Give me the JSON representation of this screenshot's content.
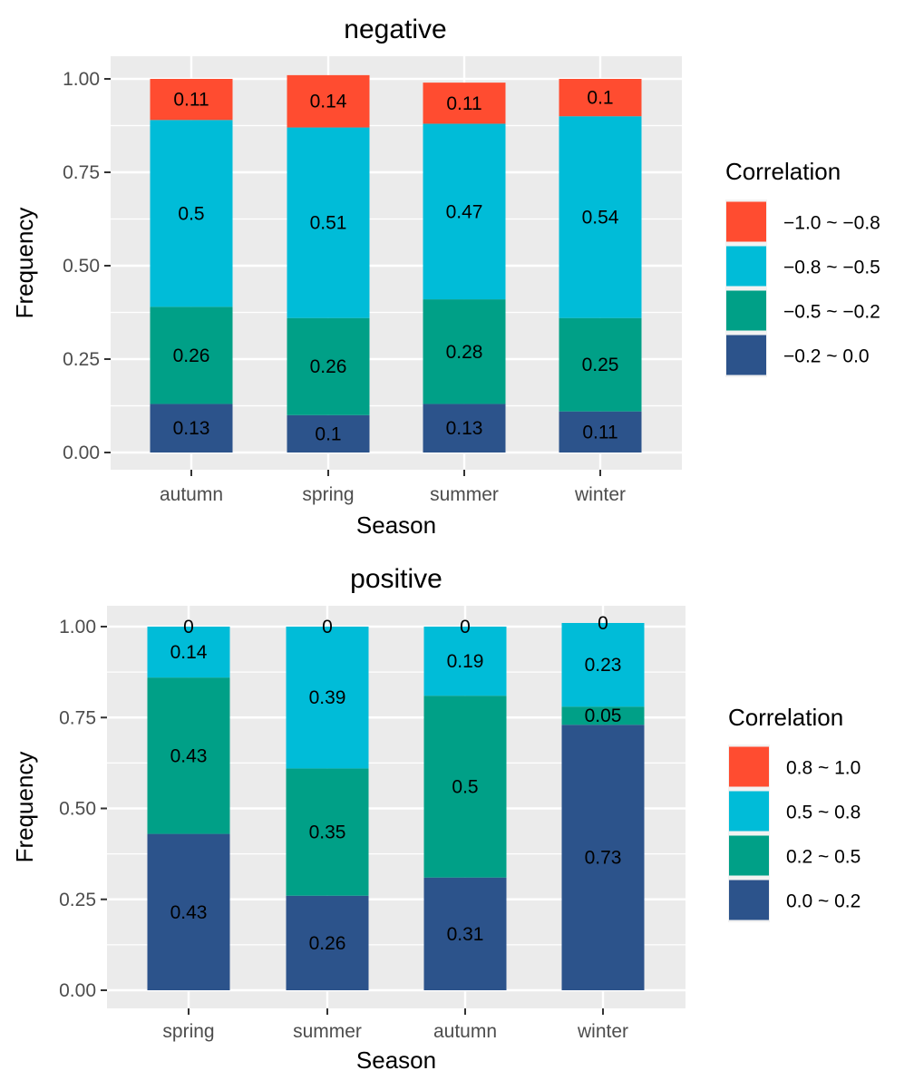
{
  "colors": {
    "panel_bg": "#ebebeb",
    "grid": "#ffffff",
    "tick": "#333333"
  },
  "chart_data": [
    {
      "type": "bar",
      "stacked": true,
      "title": "negative",
      "xlabel": "Season",
      "ylabel": "Frequency",
      "ylim": [
        0,
        1
      ],
      "yticks": [
        "0.00",
        "0.25",
        "0.50",
        "0.75",
        "1.00"
      ],
      "categories": [
        "autumn",
        "spring",
        "summer",
        "winter"
      ],
      "legend_title": "Correlation",
      "legend_position": "right",
      "series": [
        {
          "name": "−0.2 ~ 0.0",
          "color": "#2c538b",
          "values": [
            0.13,
            0.1,
            0.13,
            0.11
          ],
          "labels": [
            "0.13",
            "0.1",
            "0.13",
            "0.11"
          ]
        },
        {
          "name": "−0.5 ~ −0.2",
          "color": "#00a087",
          "values": [
            0.26,
            0.26,
            0.28,
            0.25
          ],
          "labels": [
            "0.26",
            "0.26",
            "0.28",
            "0.25"
          ]
        },
        {
          "name": "−0.8 ~ −0.5",
          "color": "#00bcd8",
          "values": [
            0.5,
            0.51,
            0.47,
            0.54
          ],
          "labels": [
            "0.5",
            "0.51",
            "0.47",
            "0.54"
          ]
        },
        {
          "name": "−1.0 ~ −0.8",
          "color": "#ff4c30",
          "values": [
            0.11,
            0.14,
            0.11,
            0.1
          ],
          "labels": [
            "0.11",
            "0.14",
            "0.11",
            "0.1"
          ]
        }
      ]
    },
    {
      "type": "bar",
      "stacked": true,
      "title": "positive",
      "xlabel": "Season",
      "ylabel": "Frequency",
      "ylim": [
        0,
        1
      ],
      "yticks": [
        "0.00",
        "0.25",
        "0.50",
        "0.75",
        "1.00"
      ],
      "categories": [
        "spring",
        "summer",
        "autumn",
        "winter"
      ],
      "legend_title": "Correlation",
      "legend_position": "right",
      "series": [
        {
          "name": "0.0 ~ 0.2",
          "color": "#2c538b",
          "values": [
            0.43,
            0.26,
            0.31,
            0.73
          ],
          "labels": [
            "0.43",
            "0.26",
            "0.31",
            "0.73"
          ]
        },
        {
          "name": "0.2 ~ 0.5",
          "color": "#00a087",
          "values": [
            0.43,
            0.35,
            0.5,
            0.05
          ],
          "labels": [
            "0.43",
            "0.35",
            "0.5",
            "0.05"
          ]
        },
        {
          "name": "0.5 ~ 0.8",
          "color": "#00bcd8",
          "values": [
            0.14,
            0.39,
            0.19,
            0.23
          ],
          "labels": [
            "0.14",
            "0.39",
            "0.19",
            "0.23"
          ]
        },
        {
          "name": "0.8 ~ 1.0",
          "color": "#ff4c30",
          "values": [
            0,
            0,
            0,
            0
          ],
          "labels": [
            "0",
            "0",
            "0",
            "0"
          ]
        }
      ]
    }
  ]
}
